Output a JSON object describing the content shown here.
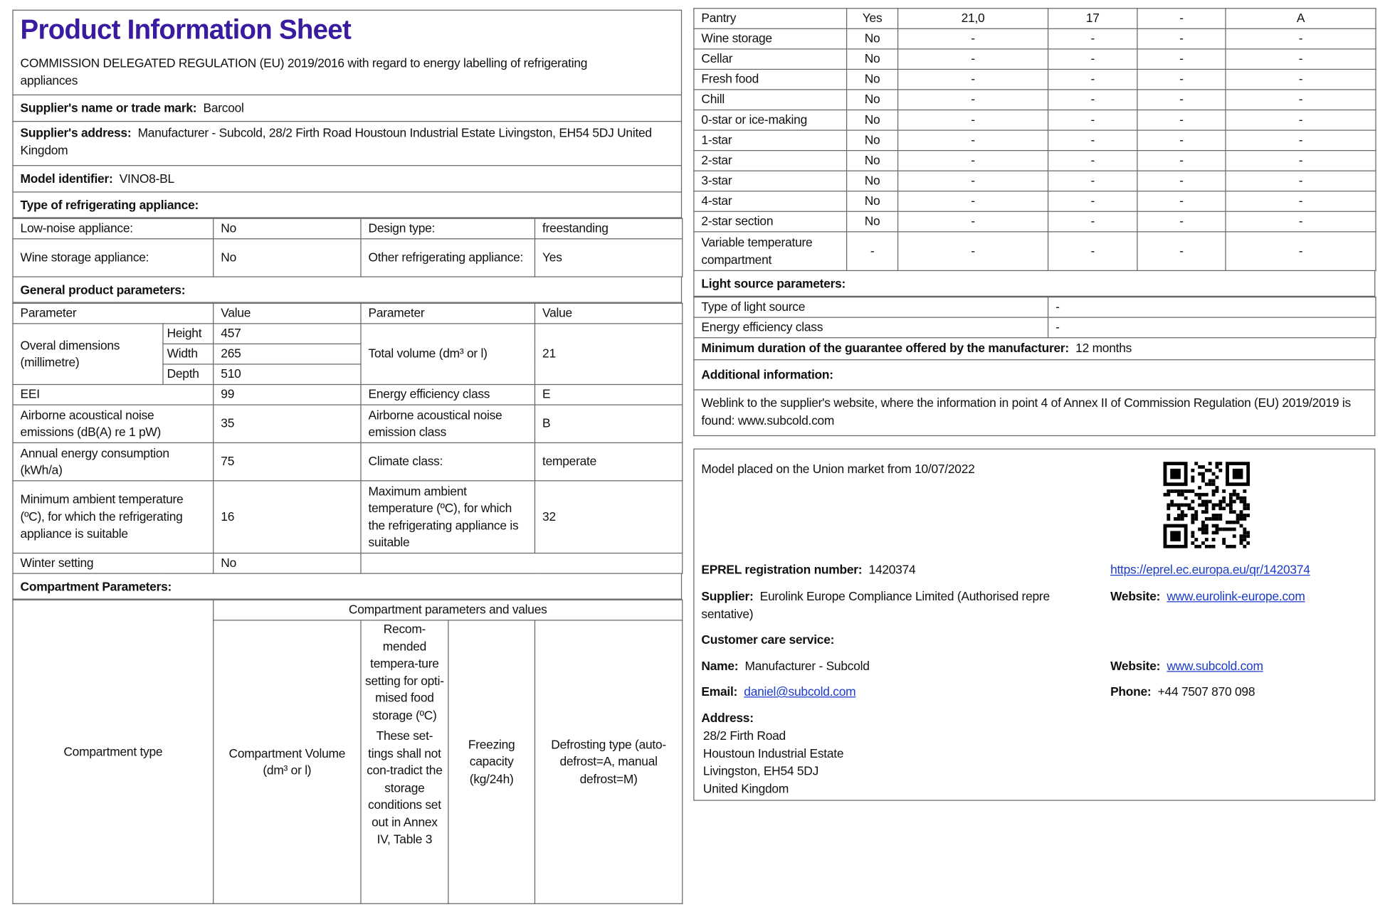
{
  "header": {
    "title": "Product Information Sheet",
    "regulation": "COMMISSION DELEGATED REGULATION (EU) 2019/2016 with regard to energy labelling of refrigerating appliances",
    "title_color": "#3a1a9e",
    "link_color": "#1a3acc"
  },
  "supplier_name": {
    "label": "Supplier's name or trade mark:",
    "value": "Barcool"
  },
  "supplier_address": {
    "label": "Supplier's address:",
    "value": "Manufacturer - Subcold, 28/2 Firth Road Houstoun Industrial Estate Livingston, EH54 5DJ United Kingdom"
  },
  "model": {
    "label": "Model identifier:",
    "value": "VINO8-BL"
  },
  "type": {
    "heading": "Type of refrigerating appliance:",
    "rows": [
      [
        "Low-noise appliance:",
        "No",
        "Design type:",
        "freestanding"
      ],
      [
        "Wine storage appliance:",
        "No",
        "Other refrigerating appliance:",
        "Yes"
      ]
    ]
  },
  "general": {
    "heading": "General product parameters:",
    "header": [
      "Parameter",
      "Value",
      "Parameter",
      "Value"
    ],
    "dims": {
      "label": "Overal dimensions (millimetre)",
      "items": [
        [
          "Height",
          "457"
        ],
        [
          "Width",
          "265"
        ],
        [
          "Depth",
          "510"
        ]
      ],
      "vol_label": "Total volume (dm³ or l)",
      "vol_value": "21"
    },
    "rows": [
      [
        "EEI",
        "99",
        "Energy efficiency class",
        "E"
      ],
      [
        "Airborne acoustical noise emissions (dB(A) re 1 pW)",
        "35",
        "Airborne acoustical noise emission class",
        "B"
      ],
      [
        "Annual energy consumption (kWh/a)",
        "75",
        "Climate class:",
        "temperate"
      ],
      [
        "Minimum ambient temperature (ºC), for which the refrigerating appliance is suitable",
        "16",
        "Maximum ambient temperature (ºC), for which the refrigerating appliance is suitable",
        "32"
      ],
      [
        "Winter setting",
        "No",
        "",
        ""
      ]
    ]
  },
  "compartment": {
    "heading": "Compartment Parameters:",
    "group_header": "Compartment parameters and values",
    "cols": [
      "Compartment type",
      "Compartment Volume (dm³ or l)",
      "Recommended temperature setting for optimised food storage (ºC) These settings shall not contradict the storage conditions set out in Annex IV, Table 3",
      "Freezing capacity (kg/24h)",
      "Defrosting type (auto-defrost=A, manual defrost=M)"
    ],
    "col_rec_a": "Recom-mended tempera-ture setting for opti-mised food storage (ºC)",
    "col_rec_b": "These set-tings shall not con-tradict the storage conditions set out in Annex IV, Table 3",
    "rows": [
      [
        "Pantry",
        "Yes",
        "21,0",
        "17",
        "-",
        "A"
      ],
      [
        "Wine storage",
        "No",
        "-",
        "-",
        "-",
        "-"
      ],
      [
        "Cellar",
        "No",
        "-",
        "-",
        "-",
        "-"
      ],
      [
        "Fresh food",
        "No",
        "-",
        "-",
        "-",
        "-"
      ],
      [
        "Chill",
        "No",
        "-",
        "-",
        "-",
        "-"
      ],
      [
        "0-star or ice-making",
        "No",
        "-",
        "-",
        "-",
        "-"
      ],
      [
        "1-star",
        "No",
        "-",
        "-",
        "-",
        "-"
      ],
      [
        "2-star",
        "No",
        "-",
        "-",
        "-",
        "-"
      ],
      [
        "3-star",
        "No",
        "-",
        "-",
        "-",
        "-"
      ],
      [
        "4-star",
        "No",
        "-",
        "-",
        "-",
        "-"
      ],
      [
        "2-star section",
        "No",
        "-",
        "-",
        "-",
        "-"
      ],
      [
        "Variable temperature compartment",
        "-",
        "-",
        "-",
        "-",
        "-"
      ]
    ]
  },
  "light": {
    "heading": "Light source parameters:",
    "rows": [
      [
        "Type of light source",
        "-"
      ],
      [
        "Energy efficiency class",
        "-"
      ]
    ]
  },
  "guarantee": {
    "label": "Minimum duration of the guarantee offered by the manufacturer:",
    "value": "12 months"
  },
  "additional": {
    "heading": "Additional information:",
    "text": "Weblink to the supplier's website, where the information in point 4 of Annex II of Commission Regulation (EU) 2019/2019 is found:  www.subcold.com"
  },
  "eprel": {
    "placed": "Model placed on the Union market from 10/07/2022",
    "reg_label": "EPREL registration number:",
    "reg_value": "1420374",
    "qr_link": "https://eprel.ec.europa.eu/qr/1420374",
    "supplier_label": "Supplier:",
    "supplier_value": "Eurolink Europe Compliance Limited (Authorised repre sentative)",
    "website_label": "Website:",
    "supplier_website": "www.eurolink-europe.com",
    "care_heading": "Customer care service:",
    "name_label": "Name:",
    "name_value": "Manufacturer - Subcold",
    "care_website": "www.subcold.com",
    "email_label": "Email:",
    "email_value": "daniel@subcold.com",
    "phone_label": "Phone:",
    "phone_value": "+44 7507 870 098",
    "address_label": "Address:",
    "address_lines": [
      "28/2 Firth Road",
      "Houstoun Industrial Estate",
      "Livingston, EH54 5DJ",
      "United Kingdom"
    ],
    "qr_icon": "qr-code"
  }
}
